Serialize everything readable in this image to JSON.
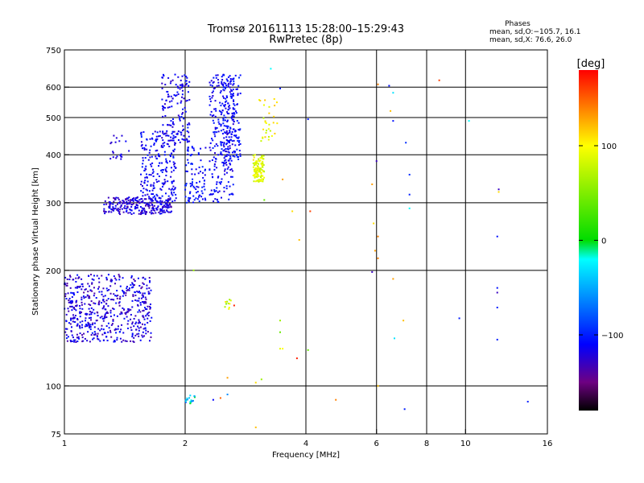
{
  "title": {
    "line1": "Tromsø 20161113 15:28:00–15:29:43",
    "line2": "RwPretec (8p)"
  },
  "phase_stats": {
    "heading": "Phases",
    "o_line": "mean, sd,O:−105.7, 16.1",
    "x_line": "mean, sd,X:  76.6, 26.0"
  },
  "colorbar": {
    "label": "[deg]",
    "range": [
      -180,
      180
    ],
    "ticks": [
      100,
      0,
      -100
    ],
    "tick_labels": [
      "100",
      "0",
      "−100"
    ]
  },
  "chart_data": {
    "type": "scatter",
    "xlabel": "Frequency [MHz]",
    "ylabel": "Stationary phase Virtual Height [km]",
    "xscale": "log",
    "yscale": "log",
    "xlim": [
      1,
      16
    ],
    "ylim": [
      75,
      750
    ],
    "xticks": [
      1,
      2,
      4,
      6,
      8,
      10,
      16
    ],
    "xtick_labels": [
      "1",
      "2",
      "4",
      "6",
      "8",
      "10",
      "16"
    ],
    "yticks": [
      75,
      100,
      200,
      300,
      400,
      500,
      600,
      750
    ],
    "ytick_labels": [
      "75",
      "100",
      "200",
      "300",
      "400",
      "500",
      "600",
      "750"
    ],
    "grid": true,
    "color_encoding": "phase [deg]",
    "clusters": [
      {
        "x": [
          1.0,
          1.65
        ],
        "y": [
          130,
          195
        ],
        "phase": [
          -140,
          -100
        ],
        "n": 550
      },
      {
        "x": [
          1.25,
          1.85
        ],
        "y": [
          280,
          310
        ],
        "phase": [
          -140,
          -105
        ],
        "n": 260
      },
      {
        "x": [
          1.55,
          1.9
        ],
        "y": [
          300,
          460
        ],
        "phase": [
          -125,
          -100
        ],
        "n": 220
      },
      {
        "x": [
          1.75,
          2.05
        ],
        "y": [
          430,
          650
        ],
        "phase": [
          -130,
          -100
        ],
        "n": 140
      },
      {
        "x": [
          2.0,
          2.25
        ],
        "y": [
          300,
          420
        ],
        "phase": [
          -120,
          -95
        ],
        "n": 90
      },
      {
        "x": [
          2.3,
          2.65
        ],
        "y": [
          300,
          650
        ],
        "phase": [
          -125,
          -100
        ],
        "n": 220
      },
      {
        "x": [
          2.45,
          2.75
        ],
        "y": [
          380,
          650
        ],
        "phase": [
          -120,
          -95
        ],
        "n": 160
      },
      {
        "x": [
          2.95,
          3.15
        ],
        "y": [
          340,
          400
        ],
        "phase": [
          70,
          110
        ],
        "n": 110
      },
      {
        "x": [
          3.05,
          3.4
        ],
        "y": [
          430,
          560
        ],
        "phase": [
          70,
          120
        ],
        "n": 30
      },
      {
        "x": [
          1.3,
          1.45
        ],
        "y": [
          385,
          450
        ],
        "phase": [
          -130,
          -110
        ],
        "n": 20
      },
      {
        "x": [
          2.0,
          2.12
        ],
        "y": [
          90,
          95
        ],
        "phase": [
          -80,
          10
        ],
        "n": 18
      },
      {
        "x": [
          2.48,
          2.6
        ],
        "y": [
          158,
          168
        ],
        "phase": [
          50,
          110
        ],
        "n": 10
      }
    ],
    "points": [
      {
        "x": 3.27,
        "y": 670,
        "phase": -20
      },
      {
        "x": 3.45,
        "y": 595,
        "phase": -100
      },
      {
        "x": 4.05,
        "y": 495,
        "phase": -100
      },
      {
        "x": 6.0,
        "y": 385,
        "phase": -130
      },
      {
        "x": 6.05,
        "y": 610,
        "phase": 140
      },
      {
        "x": 6.45,
        "y": 605,
        "phase": -105
      },
      {
        "x": 6.6,
        "y": 580,
        "phase": -30
      },
      {
        "x": 6.5,
        "y": 520,
        "phase": 120
      },
      {
        "x": 6.6,
        "y": 490,
        "phase": -105
      },
      {
        "x": 7.1,
        "y": 430,
        "phase": -95
      },
      {
        "x": 7.25,
        "y": 355,
        "phase": -95
      },
      {
        "x": 7.25,
        "y": 315,
        "phase": -100
      },
      {
        "x": 7.25,
        "y": 290,
        "phase": -20
      },
      {
        "x": 5.85,
        "y": 335,
        "phase": 130
      },
      {
        "x": 5.9,
        "y": 265,
        "phase": 110
      },
      {
        "x": 6.05,
        "y": 245,
        "phase": 140
      },
      {
        "x": 5.95,
        "y": 225,
        "phase": 130
      },
      {
        "x": 6.05,
        "y": 215,
        "phase": 140
      },
      {
        "x": 5.85,
        "y": 198,
        "phase": -130
      },
      {
        "x": 6.6,
        "y": 190,
        "phase": 130
      },
      {
        "x": 7.0,
        "y": 148,
        "phase": 120
      },
      {
        "x": 6.65,
        "y": 133,
        "phase": -30
      },
      {
        "x": 7.05,
        "y": 87,
        "phase": -100
      },
      {
        "x": 8.6,
        "y": 625,
        "phase": 160
      },
      {
        "x": 10.2,
        "y": 490,
        "phase": -20
      },
      {
        "x": 12.1,
        "y": 325,
        "phase": -130
      },
      {
        "x": 12.1,
        "y": 320,
        "phase": 110
      },
      {
        "x": 12.0,
        "y": 245,
        "phase": -105
      },
      {
        "x": 12.0,
        "y": 180,
        "phase": -105
      },
      {
        "x": 12.0,
        "y": 175,
        "phase": -130
      },
      {
        "x": 12.0,
        "y": 160,
        "phase": -100
      },
      {
        "x": 12.0,
        "y": 132,
        "phase": -100
      },
      {
        "x": 14.3,
        "y": 91,
        "phase": -100
      },
      {
        "x": 9.65,
        "y": 150,
        "phase": -100
      },
      {
        "x": 3.7,
        "y": 285,
        "phase": 110
      },
      {
        "x": 3.85,
        "y": 240,
        "phase": 120
      },
      {
        "x": 4.1,
        "y": 285,
        "phase": 160
      },
      {
        "x": 3.5,
        "y": 345,
        "phase": 130
      },
      {
        "x": 3.15,
        "y": 305,
        "phase": 40
      },
      {
        "x": 3.45,
        "y": 148,
        "phase": 60
      },
      {
        "x": 3.45,
        "y": 138,
        "phase": 40
      },
      {
        "x": 3.45,
        "y": 125,
        "phase": 90
      },
      {
        "x": 3.5,
        "y": 125,
        "phase": 100
      },
      {
        "x": 3.8,
        "y": 118,
        "phase": 170
      },
      {
        "x": 4.05,
        "y": 124,
        "phase": 40
      },
      {
        "x": 2.55,
        "y": 105,
        "phase": 130
      },
      {
        "x": 3.0,
        "y": 102,
        "phase": 110
      },
      {
        "x": 3.1,
        "y": 104,
        "phase": 60
      },
      {
        "x": 2.45,
        "y": 93,
        "phase": 150
      },
      {
        "x": 2.55,
        "y": 95,
        "phase": -60
      },
      {
        "x": 2.35,
        "y": 92,
        "phase": -110
      },
      {
        "x": 4.75,
        "y": 92,
        "phase": 140
      },
      {
        "x": 6.05,
        "y": 100,
        "phase": 120
      },
      {
        "x": 2.65,
        "y": 162,
        "phase": 170
      },
      {
        "x": 3.0,
        "y": 78,
        "phase": 120
      },
      {
        "x": 2.1,
        "y": 200,
        "phase": 60
      }
    ]
  }
}
